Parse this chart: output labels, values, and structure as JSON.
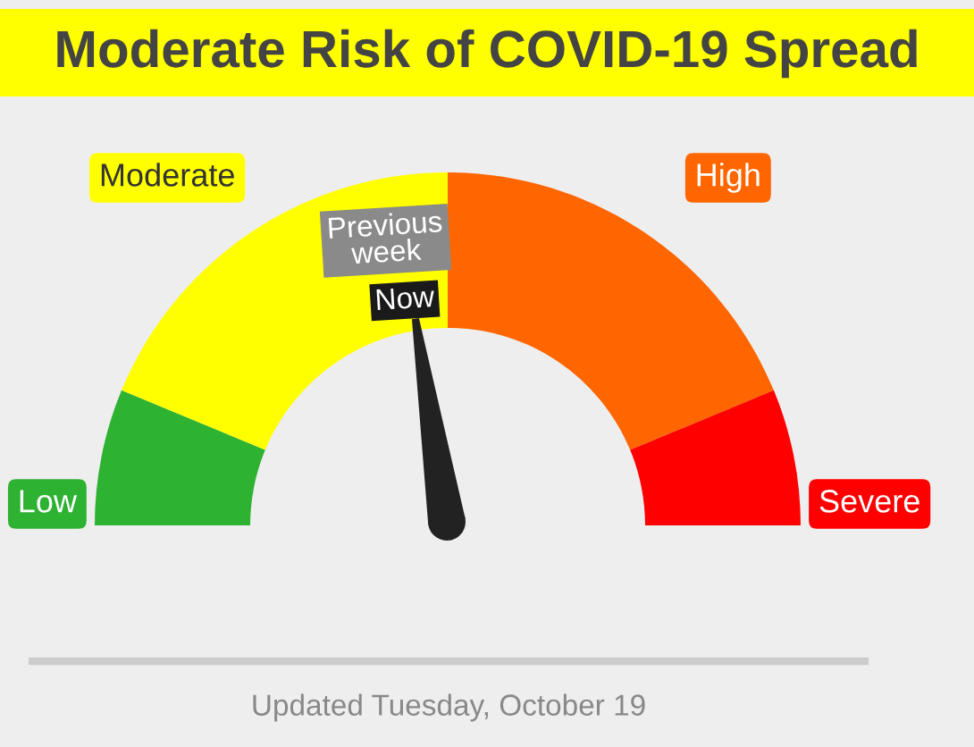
{
  "chart_data": {
    "type": "donut",
    "title": "Moderate Risk of COVID-19 Spread",
    "categories": [
      "Low",
      "Moderate",
      "High",
      "Severe"
    ],
    "values": [
      12.5,
      37.5,
      37.5,
      12.5
    ],
    "colors": [
      "#2db232",
      "#ffff00",
      "#ff6600",
      "#ff0000"
    ],
    "needle": "Moderate",
    "annotations": [
      "Previous week",
      "Now",
      "Updated Tuesday, October 19"
    ]
  }
}
